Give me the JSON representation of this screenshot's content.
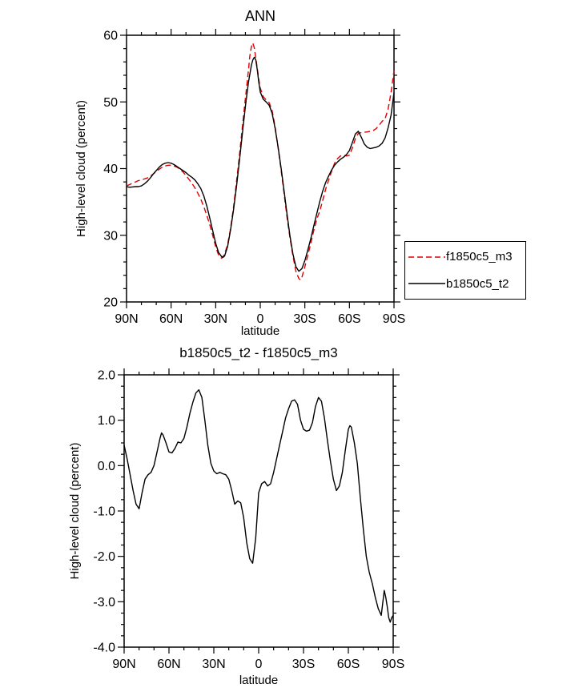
{
  "colors": {
    "frame": "#000000",
    "red_line": "#e00000",
    "black_line": "#000000",
    "background": "#ffffff"
  },
  "chart_data": [
    {
      "id": "ann",
      "type": "line",
      "title": "ANN",
      "xlabel": "latitude",
      "ylabel": "High-level cloud (percent)",
      "xlim": [
        90,
        -90
      ],
      "ylim": [
        20,
        60
      ],
      "xticks": [
        {
          "v": 90,
          "label": "90N"
        },
        {
          "v": 60,
          "label": "60N"
        },
        {
          "v": 30,
          "label": "30N"
        },
        {
          "v": 0,
          "label": "0"
        },
        {
          "v": -30,
          "label": "30S"
        },
        {
          "v": -60,
          "label": "60S"
        },
        {
          "v": -90,
          "label": "90S"
        }
      ],
      "yticks": [
        {
          "v": 20,
          "label": "20"
        },
        {
          "v": 30,
          "label": "30"
        },
        {
          "v": 40,
          "label": "40"
        },
        {
          "v": 50,
          "label": "50"
        },
        {
          "v": 60,
          "label": "60"
        }
      ],
      "x_minor_step": 10,
      "y_minor_step": 2,
      "legend": {
        "position": "right-outside",
        "items": [
          {
            "label": "f1850c5_m3",
            "color": "#e00000",
            "dash": "7,4"
          },
          {
            "label": "b1850c5_t2",
            "color": "#000000",
            "dash": ""
          }
        ]
      },
      "series": [
        {
          "name": "f1850c5_m3",
          "color": "#e00000",
          "dash": "7,4",
          "x": [
            90,
            88,
            86,
            84,
            82,
            80,
            78,
            76,
            74,
            72,
            70,
            68,
            66,
            64,
            62,
            60,
            58,
            56,
            54,
            52,
            50,
            48,
            46,
            44,
            42,
            40,
            38,
            36,
            34,
            32,
            30,
            28,
            26,
            25,
            24,
            22,
            20,
            18,
            16,
            14,
            12,
            10,
            8,
            7,
            6,
            5,
            4,
            3,
            2,
            1,
            0,
            -2,
            -4,
            -6,
            -8,
            -10,
            -12,
            -14,
            -16,
            -18,
            -20,
            -22,
            -24,
            -26,
            -27,
            -28,
            -30,
            -32,
            -34,
            -36,
            -38,
            -40,
            -42,
            -44,
            -46,
            -48,
            -50,
            -52,
            -54,
            -56,
            -58,
            -60,
            -62,
            -64,
            -66,
            -68,
            -70,
            -72,
            -74,
            -76,
            -78,
            -80,
            -82,
            -84,
            -86,
            -88,
            -90
          ],
          "y": [
            37.4,
            37.6,
            37.8,
            38.0,
            38.2,
            38.3,
            38.45,
            38.6,
            38.85,
            39.2,
            39.55,
            39.9,
            40.2,
            40.4,
            40.5,
            40.5,
            40.4,
            40.2,
            39.9,
            39.5,
            38.95,
            38.4,
            37.8,
            37.1,
            36.3,
            35.4,
            34.3,
            33.0,
            31.6,
            30.0,
            28.3,
            27.0,
            26.55,
            26.8,
            27.2,
            28.6,
            31.0,
            34.2,
            38.0,
            42.0,
            46.3,
            50.5,
            54.7,
            56.9,
            58.3,
            58.85,
            58.1,
            56.6,
            55.0,
            53.4,
            52.1,
            50.8,
            50.3,
            49.9,
            48.7,
            46.2,
            43.1,
            39.8,
            36.3,
            32.7,
            29.6,
            26.9,
            24.6,
            23.5,
            23.3,
            23.7,
            25.3,
            27.0,
            28.8,
            30.7,
            32.4,
            33.6,
            35.2,
            36.9,
            38.3,
            39.6,
            40.8,
            41.5,
            41.9,
            42.0,
            41.9,
            42.0,
            43.1,
            44.5,
            45.3,
            45.4,
            45.45,
            45.5,
            45.6,
            45.7,
            46.0,
            46.5,
            47.1,
            47.5,
            48.9,
            51.4,
            54.7
          ]
        },
        {
          "name": "b1850c5_t2",
          "color": "#000000",
          "dash": "",
          "x": [
            90,
            88,
            86,
            84,
            82,
            80,
            78,
            76,
            74,
            72,
            70,
            68,
            66,
            64,
            62,
            60,
            58,
            56,
            54,
            52,
            50,
            48,
            46,
            44,
            42,
            40,
            38,
            36,
            34,
            32,
            30,
            28,
            26,
            25,
            24,
            22,
            20,
            18,
            16,
            14,
            12,
            10,
            8,
            6,
            5,
            4,
            3,
            2,
            1,
            0,
            -2,
            -4,
            -6,
            -8,
            -10,
            -12,
            -14,
            -16,
            -18,
            -20,
            -22,
            -24,
            -26,
            -28,
            -30,
            -32,
            -34,
            -36,
            -38,
            -40,
            -42,
            -44,
            -46,
            -48,
            -50,
            -52,
            -54,
            -56,
            -58,
            -60,
            -62,
            -64,
            -66,
            -68,
            -70,
            -72,
            -74,
            -76,
            -78,
            -80,
            -82,
            -84,
            -86,
            -88,
            -90
          ],
          "y": [
            37.3,
            37.2,
            37.25,
            37.3,
            37.3,
            37.4,
            37.7,
            38.1,
            38.6,
            39.2,
            39.7,
            40.2,
            40.6,
            40.8,
            40.9,
            40.8,
            40.6,
            40.3,
            40.0,
            39.7,
            39.4,
            39.0,
            38.7,
            38.3,
            37.7,
            37.0,
            35.9,
            34.4,
            32.6,
            30.7,
            28.8,
            27.4,
            26.8,
            26.7,
            26.9,
            28.3,
            30.8,
            33.8,
            37.3,
            41.2,
            45.3,
            49.3,
            52.9,
            55.5,
            56.3,
            56.7,
            56.3,
            54.8,
            53.0,
            51.5,
            50.4,
            50.0,
            49.5,
            48.3,
            46.0,
            43.2,
            40.1,
            36.7,
            33.2,
            29.9,
            27.2,
            25.3,
            24.6,
            25.0,
            26.2,
            27.8,
            29.5,
            31.4,
            33.2,
            35.0,
            36.6,
            37.9,
            38.9,
            39.8,
            40.5,
            41.0,
            41.4,
            41.7,
            42.1,
            42.7,
            43.9,
            45.2,
            45.6,
            44.7,
            43.7,
            43.2,
            43.0,
            43.1,
            43.2,
            43.4,
            43.8,
            44.6,
            46.1,
            48.0,
            51.4
          ]
        }
      ]
    },
    {
      "id": "difference",
      "type": "line",
      "title": "b1850c5_t2 - f1850c5_m3",
      "xlabel": "latitude",
      "ylabel": "High-level cloud (percent)",
      "xlim": [
        90,
        -90
      ],
      "ylim": [
        -4,
        2
      ],
      "xticks": [
        {
          "v": 90,
          "label": "90N"
        },
        {
          "v": 60,
          "label": "60N"
        },
        {
          "v": 30,
          "label": "30N"
        },
        {
          "v": 0,
          "label": "0"
        },
        {
          "v": -30,
          "label": "30S"
        },
        {
          "v": -60,
          "label": "60S"
        },
        {
          "v": -90,
          "label": "90S"
        }
      ],
      "yticks": [
        {
          "v": 2,
          "label": "2.0"
        },
        {
          "v": 1,
          "label": "1.0"
        },
        {
          "v": 0,
          "label": "0.0"
        },
        {
          "v": -1,
          "label": "-1.0"
        },
        {
          "v": -2,
          "label": "-2.0"
        },
        {
          "v": -3,
          "label": "-3.0"
        },
        {
          "v": -4,
          "label": "-4.0"
        }
      ],
      "x_minor_step": 10,
      "y_minor_step": 0.25,
      "series": [
        {
          "name": "b1850c5_t2 - f1850c5_m3",
          "color": "#000000",
          "dash": "",
          "x": [
            90,
            88,
            86,
            84,
            82,
            80,
            78,
            76,
            74,
            72,
            70,
            68,
            66,
            65,
            64,
            62,
            60,
            58,
            56,
            54,
            52,
            50,
            48,
            46,
            44,
            42,
            40,
            38,
            36,
            34,
            32,
            30,
            28,
            26,
            24,
            22,
            20,
            18,
            16,
            14,
            12,
            10,
            8,
            6,
            4,
            2,
            0,
            -2,
            -4,
            -6,
            -8,
            -10,
            -12,
            -14,
            -16,
            -18,
            -20,
            -22,
            -24,
            -26,
            -28,
            -30,
            -32,
            -34,
            -36,
            -38,
            -40,
            -42,
            -44,
            -46,
            -48,
            -50,
            -52,
            -54,
            -56,
            -58,
            -60,
            -61,
            -62,
            -64,
            -66,
            -68,
            -70,
            -72,
            -74,
            -76,
            -78,
            -80,
            -82,
            -84,
            -85,
            -86,
            -87,
            -88,
            -89,
            -90
          ],
          "y": [
            0.45,
            0.15,
            -0.2,
            -0.55,
            -0.85,
            -0.95,
            -0.6,
            -0.3,
            -0.2,
            -0.15,
            0.0,
            0.3,
            0.6,
            0.72,
            0.68,
            0.5,
            0.3,
            0.28,
            0.38,
            0.52,
            0.5,
            0.6,
            0.85,
            1.15,
            1.4,
            1.6,
            1.67,
            1.5,
            1.0,
            0.45,
            0.05,
            -0.12,
            -0.18,
            -0.15,
            -0.18,
            -0.2,
            -0.3,
            -0.55,
            -0.85,
            -0.78,
            -0.82,
            -1.15,
            -1.7,
            -2.05,
            -2.15,
            -1.6,
            -0.6,
            -0.4,
            -0.35,
            -0.45,
            -0.4,
            -0.15,
            0.15,
            0.45,
            0.75,
            1.05,
            1.25,
            1.42,
            1.45,
            1.35,
            1.0,
            0.8,
            0.76,
            0.78,
            0.95,
            1.3,
            1.5,
            1.42,
            1.05,
            0.55,
            0.1,
            -0.3,
            -0.55,
            -0.45,
            -0.15,
            0.35,
            0.8,
            0.88,
            0.85,
            0.5,
            0.05,
            -0.7,
            -1.4,
            -2.0,
            -2.35,
            -2.6,
            -2.9,
            -3.15,
            -3.3,
            -2.75,
            -2.9,
            -3.1,
            -3.35,
            -3.45,
            -3.35,
            -3.3
          ]
        }
      ]
    }
  ]
}
